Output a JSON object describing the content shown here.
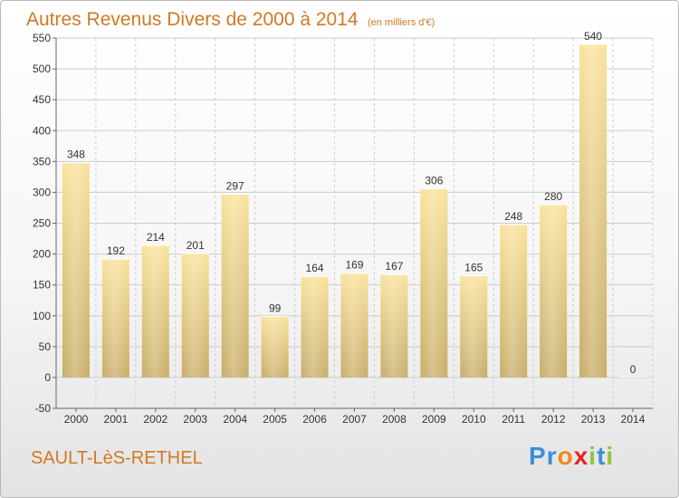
{
  "chart_title": "Autres Revenus Divers de 2000 à 2014",
  "chart_subtitle": "(en milliers d'€)",
  "location": "SAULT-LèS-RETHEL",
  "brand": {
    "text": "Proxiti",
    "letter_colors": [
      "#3a8fd6",
      "#3a8fd6",
      "#f08a1e",
      "#e2242a",
      "#8cc63f",
      "#3a8fd6",
      "#8cc63f"
    ]
  },
  "colors": {
    "title": "#d07a24",
    "bar_light": "#fae29a",
    "bar_dark": "#c7ad68",
    "grid": "#cccccc",
    "axis": "#666666",
    "label": "#333333"
  },
  "chart_data": {
    "type": "bar",
    "title": "Autres Revenus Divers de 2000 à 2014",
    "subtitle": "(en milliers d'€)",
    "categories": [
      "2000",
      "2001",
      "2002",
      "2003",
      "2004",
      "2005",
      "2006",
      "2007",
      "2008",
      "2009",
      "2010",
      "2011",
      "2012",
      "2013",
      "2014"
    ],
    "values": [
      348,
      192,
      214,
      201,
      297,
      99,
      164,
      169,
      167,
      306,
      165,
      248,
      280,
      540,
      0
    ],
    "ylim": [
      -50,
      550
    ],
    "yticks": [
      -50,
      0,
      50,
      100,
      150,
      200,
      250,
      300,
      350,
      400,
      450,
      500,
      550
    ],
    "grid": true,
    "legend": "none"
  }
}
